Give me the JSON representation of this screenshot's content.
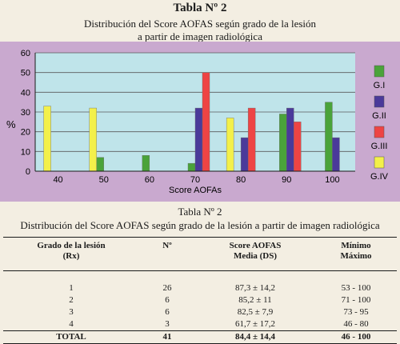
{
  "header": {
    "title": "Tabla Nº 2",
    "subtitle_line1": "Distribución del Score AOFAS según grado de la lesión",
    "subtitle_line2": "a partir de imagen radiológica"
  },
  "chart_data": {
    "type": "bar",
    "categories": [
      "40",
      "50",
      "60",
      "70",
      "80",
      "90",
      "100"
    ],
    "series": [
      {
        "name": "G.I",
        "color": "#4aa33a",
        "values": [
          0,
          7,
          8,
          4,
          0,
          29,
          35
        ]
      },
      {
        "name": "G.II",
        "color": "#4a3a9a",
        "values": [
          0,
          0,
          0,
          32,
          17,
          32,
          17
        ]
      },
      {
        "name": "G.III",
        "color": "#ee4444",
        "values": [
          0,
          0,
          0,
          50,
          32,
          25,
          0
        ]
      },
      {
        "name": "G.IV",
        "color": "#f3f04a",
        "values": [
          33,
          32,
          0,
          0,
          27,
          0,
          0
        ]
      }
    ],
    "bar_order": [
      3,
      0,
      1,
      2
    ],
    "xlabel": "Score AOFAs",
    "ylabel": "%",
    "ylim": [
      0,
      60
    ],
    "yticks": [
      "0",
      "10",
      "20",
      "30",
      "40",
      "50",
      "60"
    ],
    "grid": true,
    "legend_position": "right",
    "plot_background": "#bfe4ea",
    "panel_background": "#c9a9cf"
  },
  "table": {
    "title": "Tabla Nº 2",
    "subtitle": "Distribución del Score AOFAS según grado de la lesión a partir de imagen radiológica",
    "headers": [
      {
        "l1": "Grado de la lesión",
        "l2": "(Rx)"
      },
      {
        "l1": "Nº",
        "l2": ""
      },
      {
        "l1": "Score AOFAS",
        "l2": "Media (DS)"
      },
      {
        "l1": "Mínimo",
        "l2": "Máximo"
      }
    ],
    "rows": [
      [
        "1",
        "26",
        "87,3 ± 14,2",
        "53 - 100"
      ],
      [
        "2",
        "6",
        "85,2 ± 11",
        "71 - 100"
      ],
      [
        "3",
        "6",
        "82,5 ± 7,9",
        "73 - 95"
      ],
      [
        "4",
        "3",
        "61,7 ± 17,2",
        "46 - 80"
      ]
    ],
    "total": [
      "TOTAL",
      "41",
      "84,4 ± 14,4",
      "46 - 100"
    ]
  }
}
